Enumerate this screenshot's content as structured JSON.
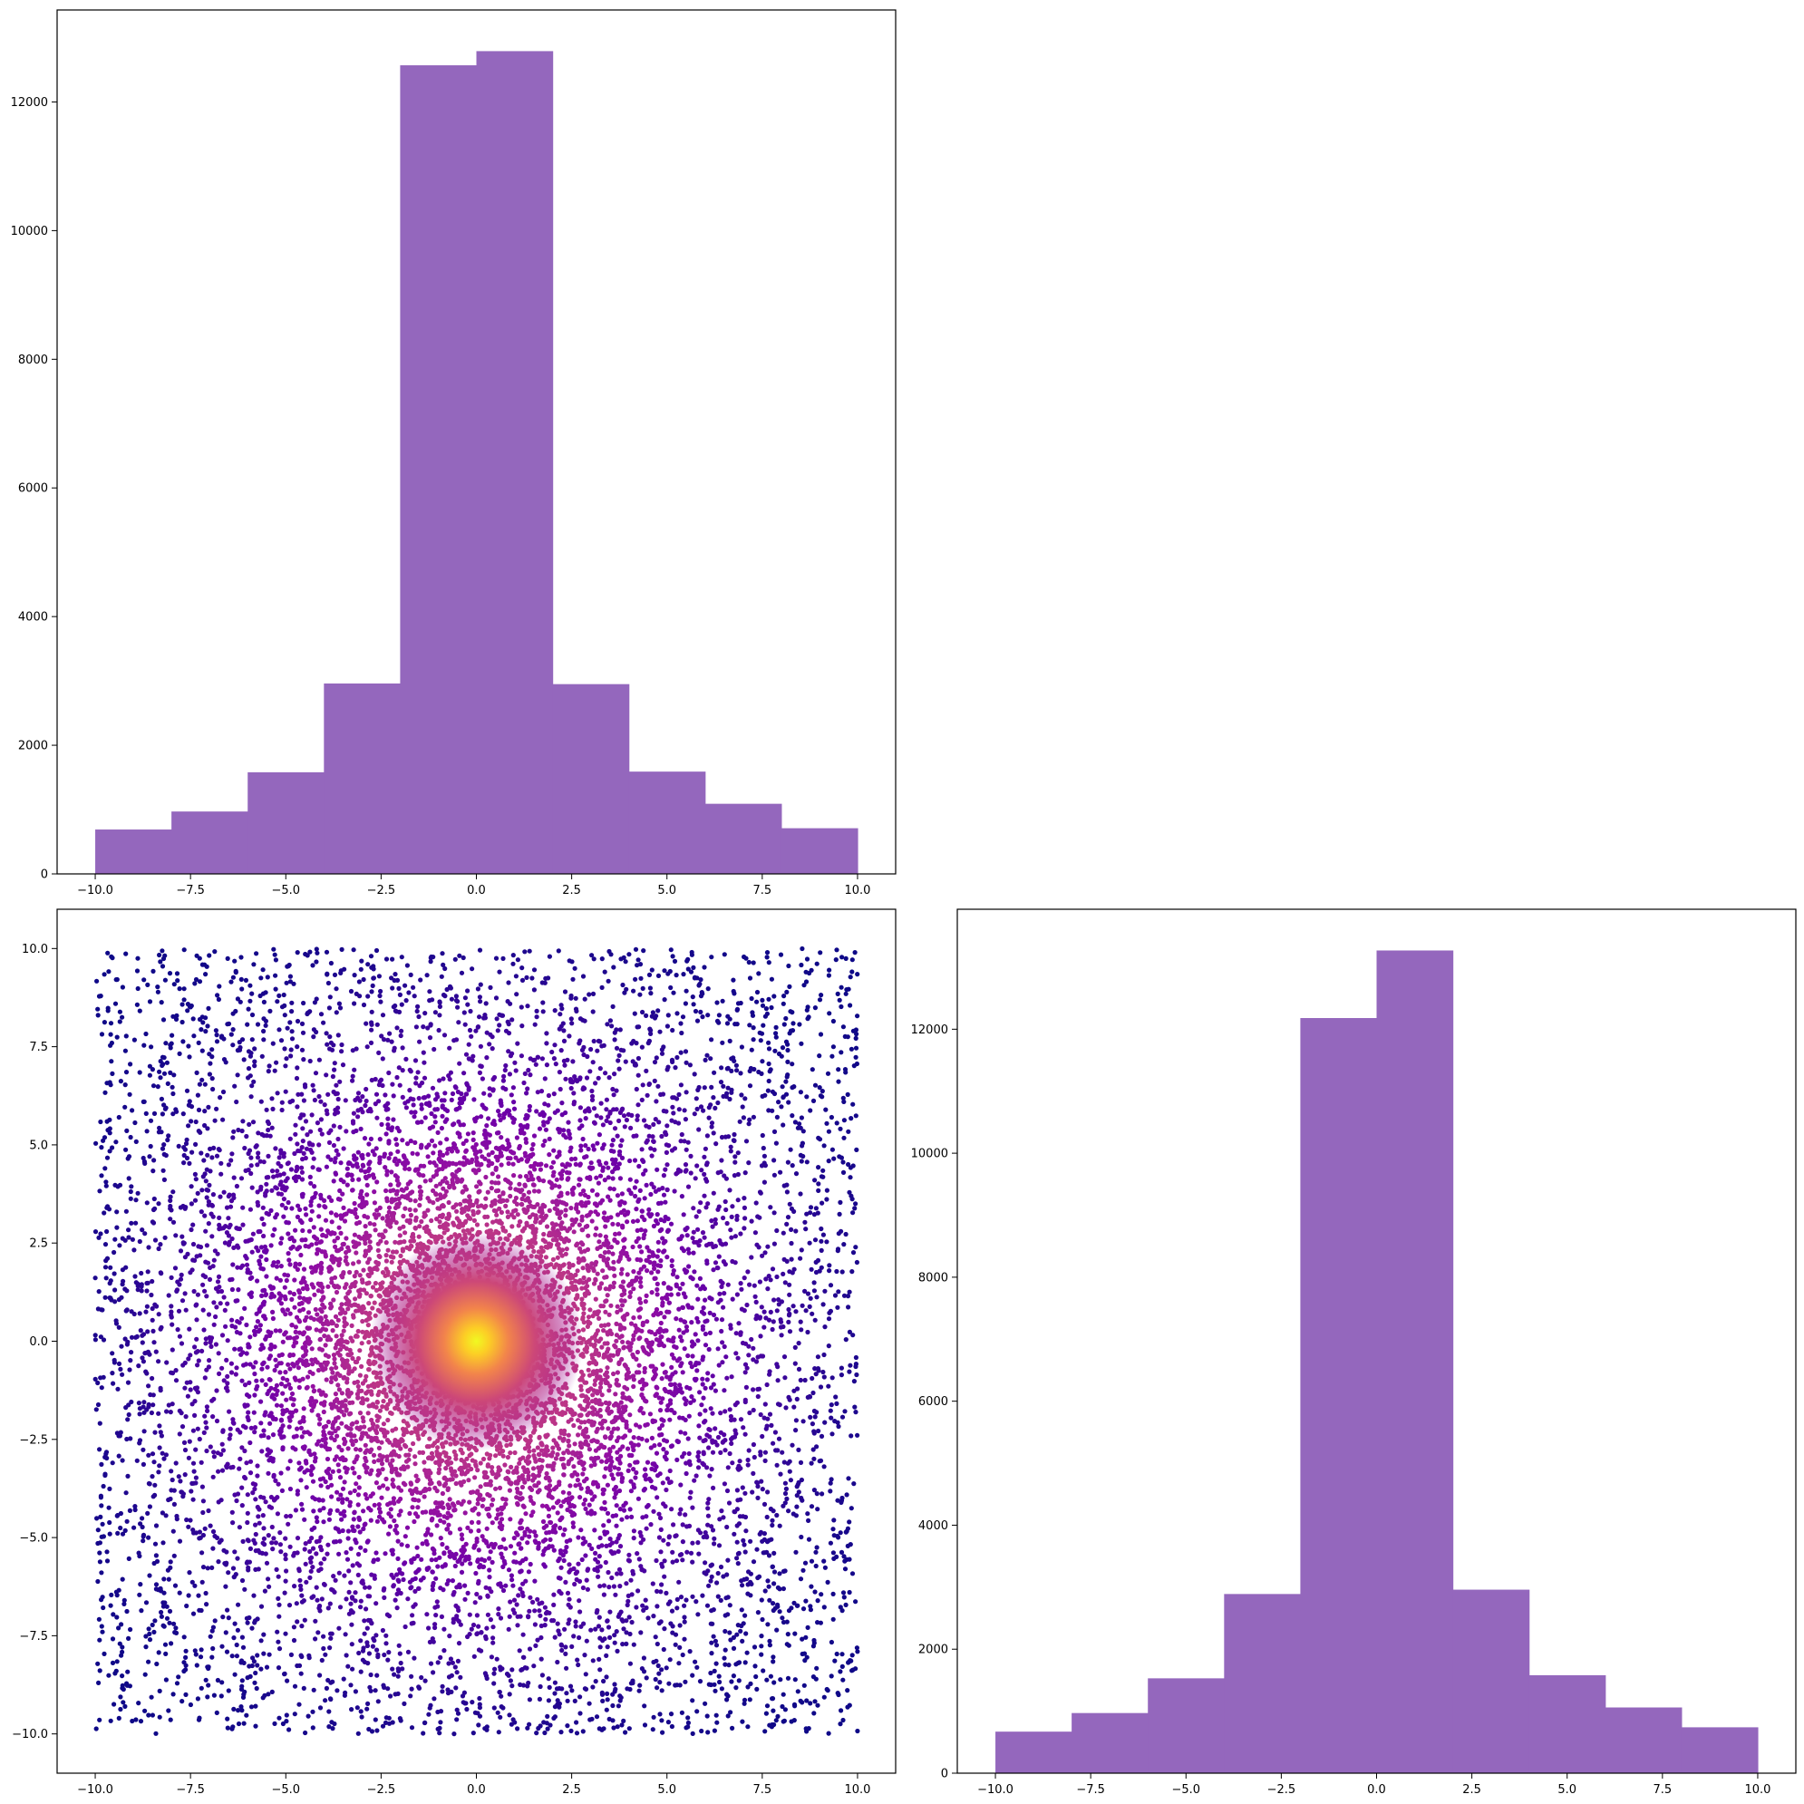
{
  "colors": {
    "hist_fill": "#9467bd",
    "axes_edge": "#000000",
    "scatter_colormap": [
      "#0d0887",
      "#41049d",
      "#6a00a8",
      "#8f0da4",
      "#b12a90",
      "#cc4778",
      "#e16462",
      "#f2844b",
      "#fca636",
      "#fcce25",
      "#f0f921"
    ]
  },
  "chart_data": [
    {
      "id": "top-left-histogram",
      "type": "bar",
      "bin_edges": [
        -10,
        -8,
        -6,
        -4,
        -2,
        0,
        2,
        4,
        6,
        8,
        10
      ],
      "values": [
        690,
        970,
        1580,
        2960,
        12570,
        12790,
        2950,
        1590,
        1090,
        710
      ],
      "xlim": [
        -11,
        11
      ],
      "ylim": [
        0,
        13430
      ],
      "xticks": [
        -10,
        -7.5,
        -5,
        -2.5,
        0,
        2.5,
        5,
        7.5,
        10
      ],
      "xtick_labels": [
        "−10.0",
        "−7.5",
        "−5.0",
        "−2.5",
        "0.0",
        "2.5",
        "5.0",
        "7.5",
        "10.0"
      ],
      "yticks": [
        0,
        2000,
        4000,
        6000,
        8000,
        10000,
        12000
      ],
      "ytick_labels": [
        "0",
        "2000",
        "4000",
        "6000",
        "8000",
        "10000",
        "12000"
      ],
      "grid": false
    },
    {
      "id": "bottom-left-scatter",
      "type": "scatter",
      "description_of_values": "points in [-10,10] x [-10,10], density peaked at origin; color by density (plasma colormap)",
      "x_range": [
        -10,
        10
      ],
      "y_range": [
        -10,
        10
      ],
      "xlim": [
        -11,
        11
      ],
      "ylim": [
        -11,
        11
      ],
      "xticks": [
        -10,
        -7.5,
        -5,
        -2.5,
        0,
        2.5,
        5,
        7.5,
        10
      ],
      "xtick_labels": [
        "−10.0",
        "−7.5",
        "−5.0",
        "−2.5",
        "0.0",
        "2.5",
        "5.0",
        "7.5",
        "10.0"
      ],
      "yticks": [
        -10,
        -7.5,
        -5,
        -2.5,
        0,
        2.5,
        5,
        7.5,
        10
      ],
      "ytick_labels": [
        "−10.0",
        "−7.5",
        "−5.0",
        "−2.5",
        "0.0",
        "2.5",
        "5.0",
        "7.5",
        "10.0"
      ],
      "grid": false
    },
    {
      "id": "bottom-right-histogram",
      "type": "bar",
      "bin_edges": [
        -10,
        -8,
        -6,
        -4,
        -2,
        0,
        2,
        4,
        6,
        8,
        10
      ],
      "values": [
        670,
        970,
        1530,
        2890,
        12180,
        13270,
        2960,
        1580,
        1060,
        740
      ],
      "xlim": [
        -11,
        11
      ],
      "ylim": [
        0,
        13935
      ],
      "xticks": [
        -10,
        -7.5,
        -5,
        -2.5,
        0,
        2.5,
        5,
        7.5,
        10
      ],
      "xtick_labels": [
        "−10.0",
        "−7.5",
        "−5.0",
        "−2.5",
        "0.0",
        "2.5",
        "5.0",
        "7.5",
        "10.0"
      ],
      "yticks": [
        0,
        2000,
        4000,
        6000,
        8000,
        10000,
        12000
      ],
      "ytick_labels": [
        "0",
        "2000",
        "4000",
        "6000",
        "8000",
        "10000",
        "12000"
      ],
      "grid": false
    }
  ]
}
